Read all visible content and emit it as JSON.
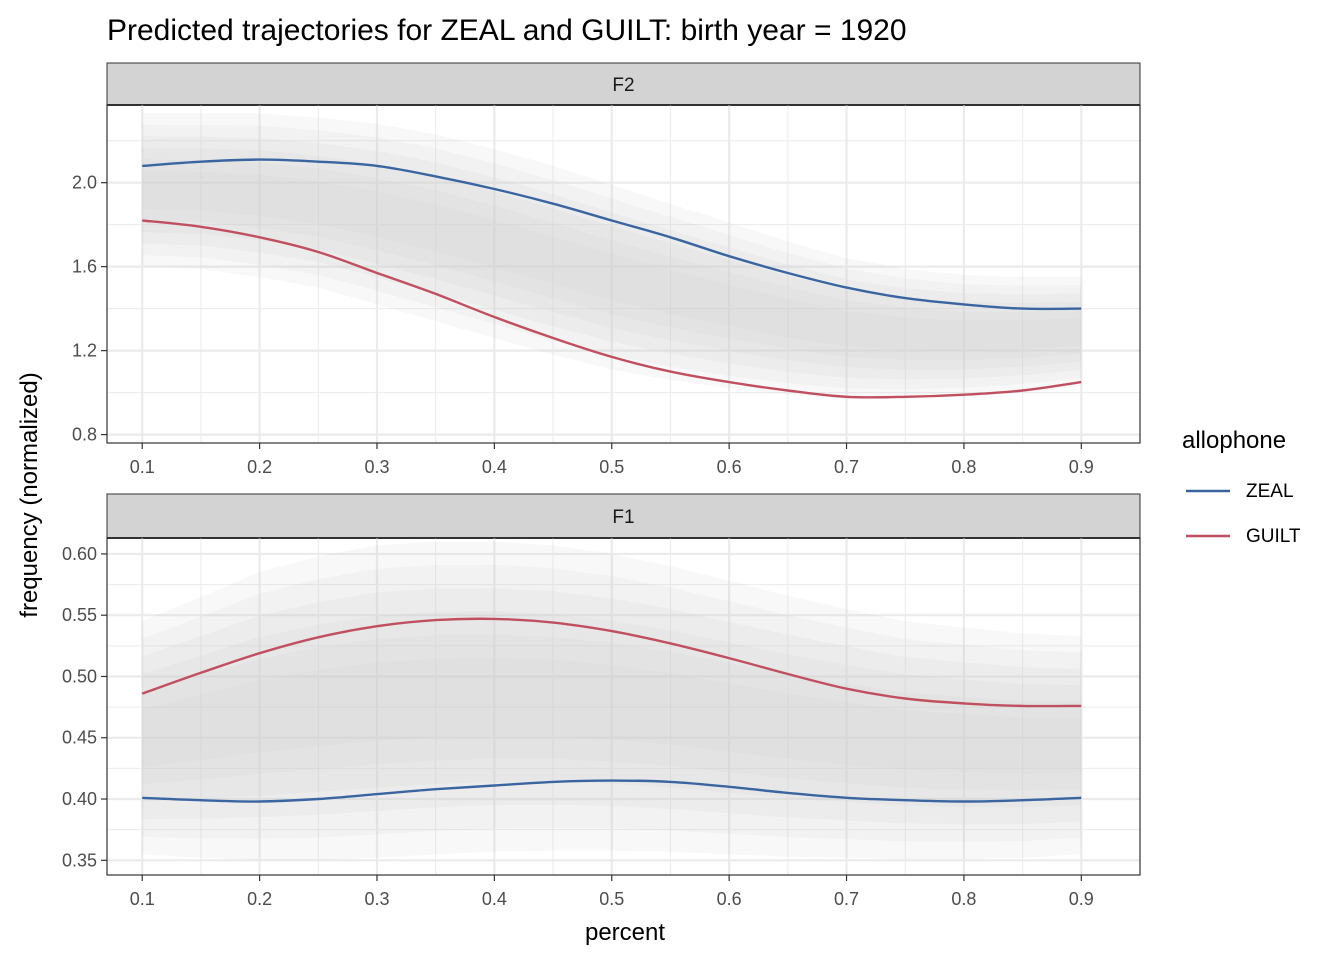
{
  "title": "Predicted trajectories for ZEAL and GUILT: birth year = 1920",
  "legend": {
    "title": "allophone",
    "entries": [
      {
        "label": "ZEAL",
        "color": "#3A65A0"
      },
      {
        "label": "GUILT",
        "color": "#C0505F"
      }
    ]
  },
  "colors": {
    "ribbon": "#cfcfcf",
    "strip_fill": "#d3d3d3",
    "grid": "#ebebeb",
    "panel_border": "#333333"
  },
  "chart_data": [
    {
      "type": "line",
      "facet": "F2",
      "xlabel": "percent",
      "ylabel": "frequency (normalized)",
      "xlim": [
        0.07,
        0.95
      ],
      "ylim": [
        0.76,
        2.37
      ],
      "x_ticks": [
        "0.1",
        "0.2",
        "0.3",
        "0.4",
        "0.5",
        "0.6",
        "0.7",
        "0.8",
        "0.9"
      ],
      "y_ticks": [
        "0.8",
        "1.2",
        "1.6",
        "2.0"
      ],
      "x": [
        0.1,
        0.15,
        0.2,
        0.25,
        0.3,
        0.35,
        0.4,
        0.45,
        0.5,
        0.55,
        0.6,
        0.65,
        0.7,
        0.75,
        0.8,
        0.85,
        0.9
      ],
      "series": [
        {
          "name": "ZEAL",
          "values": [
            2.08,
            2.1,
            2.11,
            2.1,
            2.08,
            2.03,
            1.97,
            1.9,
            1.82,
            1.74,
            1.65,
            1.57,
            1.5,
            1.45,
            1.42,
            1.4,
            1.4
          ]
        },
        {
          "name": "GUILT",
          "values": [
            1.82,
            1.79,
            1.74,
            1.67,
            1.57,
            1.47,
            1.36,
            1.26,
            1.17,
            1.1,
            1.05,
            1.01,
            0.98,
            0.98,
            0.99,
            1.01,
            1.05
          ]
        }
      ],
      "ribbon": {
        "lower": [
          1.6,
          1.59,
          1.55,
          1.5,
          1.42,
          1.34,
          1.26,
          1.18,
          1.11,
          1.06,
          1.02,
          0.99,
          0.97,
          0.97,
          0.98,
          1.0,
          1.03
        ],
        "upper": [
          2.33,
          2.33,
          2.33,
          2.31,
          2.28,
          2.23,
          2.16,
          2.08,
          1.99,
          1.9,
          1.81,
          1.72,
          1.64,
          1.59,
          1.56,
          1.55,
          1.55
        ]
      }
    },
    {
      "type": "line",
      "facet": "F1",
      "xlabel": "percent",
      "ylabel": "frequency (normalized)",
      "xlim": [
        0.07,
        0.95
      ],
      "ylim": [
        0.338,
        0.613
      ],
      "x_ticks": [
        "0.1",
        "0.2",
        "0.3",
        "0.4",
        "0.5",
        "0.6",
        "0.7",
        "0.8",
        "0.9"
      ],
      "y_ticks": [
        "0.35",
        "0.40",
        "0.45",
        "0.50",
        "0.55",
        "0.60"
      ],
      "x": [
        0.1,
        0.15,
        0.2,
        0.25,
        0.3,
        0.35,
        0.4,
        0.45,
        0.5,
        0.55,
        0.6,
        0.65,
        0.7,
        0.75,
        0.8,
        0.85,
        0.9
      ],
      "series": [
        {
          "name": "ZEAL",
          "values": [
            0.401,
            0.399,
            0.398,
            0.4,
            0.404,
            0.408,
            0.411,
            0.414,
            0.415,
            0.414,
            0.41,
            0.405,
            0.401,
            0.399,
            0.398,
            0.399,
            0.401
          ]
        },
        {
          "name": "GUILT",
          "values": [
            0.486,
            0.503,
            0.519,
            0.532,
            0.541,
            0.546,
            0.547,
            0.544,
            0.537,
            0.527,
            0.515,
            0.502,
            0.49,
            0.482,
            0.478,
            0.476,
            0.476
          ]
        }
      ],
      "ribbon": {
        "lower": [
          0.355,
          0.352,
          0.35,
          0.35,
          0.352,
          0.355,
          0.357,
          0.358,
          0.358,
          0.357,
          0.355,
          0.353,
          0.352,
          0.351,
          0.351,
          0.352,
          0.355
        ],
        "upper": [
          0.545,
          0.565,
          0.585,
          0.598,
          0.607,
          0.61,
          0.61,
          0.607,
          0.6,
          0.59,
          0.578,
          0.566,
          0.555,
          0.545,
          0.54,
          0.535,
          0.533
        ]
      }
    }
  ]
}
